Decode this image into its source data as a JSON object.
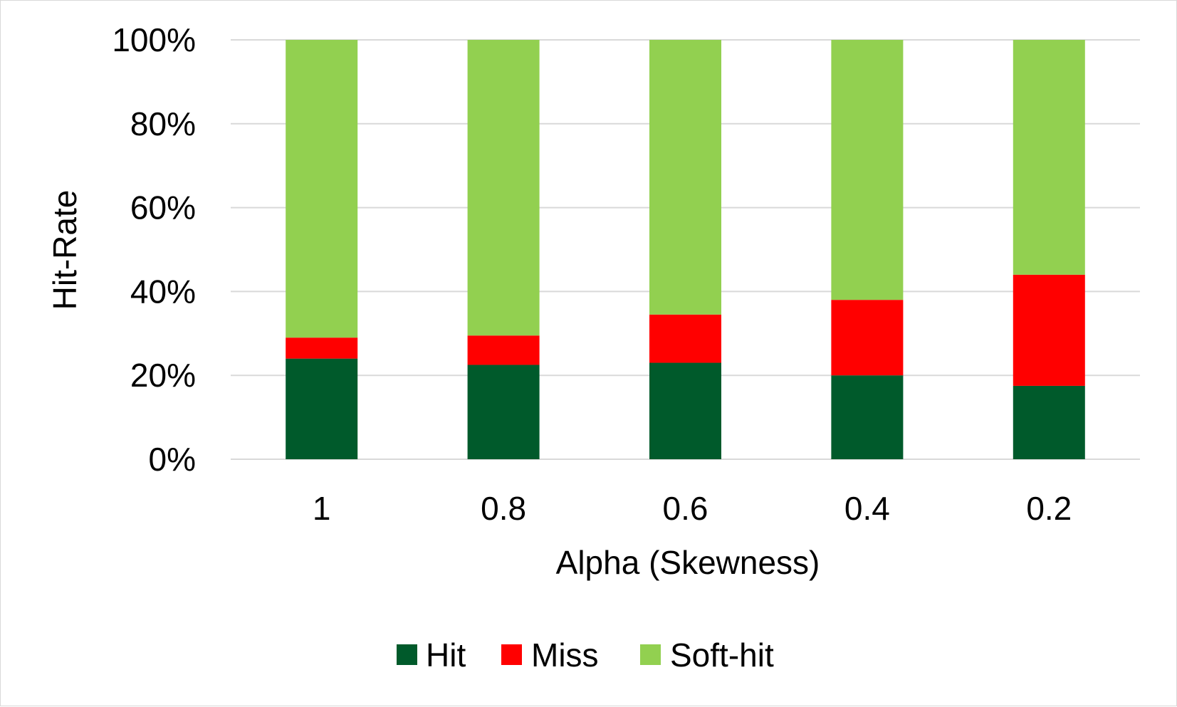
{
  "chart_data": {
    "type": "bar",
    "stacked": true,
    "percent_stacked": true,
    "categories": [
      "1",
      "0.8",
      "0.6",
      "0.4",
      "0.2"
    ],
    "series": [
      {
        "name": "Hit",
        "values": [
          24,
          22.5,
          23,
          20,
          17.5
        ],
        "color": "#005a2b"
      },
      {
        "name": "Miss",
        "values": [
          5,
          7,
          11.5,
          18,
          26.5
        ],
        "color": "#ff0000"
      },
      {
        "name": "Soft-hit",
        "values": [
          71,
          70.5,
          65.5,
          62,
          56
        ],
        "color": "#92d050"
      }
    ],
    "xlabel": "Alpha (Skewness)",
    "ylabel": "Hit-Rate",
    "ylim": [
      0,
      100
    ],
    "yticks": [
      "0%",
      "20%",
      "40%",
      "60%",
      "80%",
      "100%"
    ],
    "grid": true,
    "legend_position": "bottom"
  }
}
